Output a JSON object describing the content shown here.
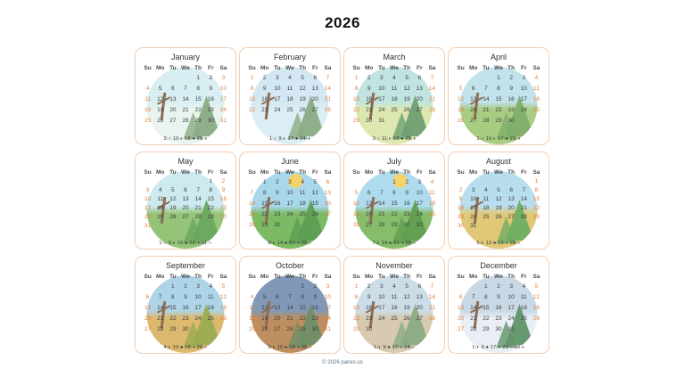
{
  "title": "2026",
  "footer": "© 2026 panes.us",
  "weekday_labels": [
    "Su",
    "Mo",
    "Tu",
    "We",
    "Th",
    "Fr",
    "Sa"
  ],
  "colors": {
    "weekend_day": "#e0813f",
    "weekday_day": "#3d3d3d",
    "weekday_header": "#4a4a4a",
    "card_border": "#f2cdb2",
    "title_text": "#111111",
    "footer_text": "#5f7585"
  },
  "months": [
    {
      "name": "January",
      "weeks": [
        [
          "",
          "",
          "",
          "",
          "1",
          "2",
          "3"
        ],
        [
          "4",
          "5",
          "6",
          "7",
          "8",
          "9",
          "10"
        ],
        [
          "11",
          "12",
          "13",
          "14",
          "15",
          "16",
          "17"
        ],
        [
          "18",
          "19",
          "20",
          "21",
          "22",
          "23",
          "24"
        ],
        [
          "25",
          "26",
          "27",
          "28",
          "29",
          "30",
          "31"
        ]
      ],
      "phases": "3:○ 10:◐ 18:● 25:◑",
      "palette": {
        "sky": "#d8eef2",
        "ground": "#e9f4f0",
        "accent": "#8aab84"
      }
    },
    {
      "name": "February",
      "weeks": [
        [
          "1",
          "2",
          "3",
          "4",
          "5",
          "6",
          "7"
        ],
        [
          "8",
          "9",
          "10",
          "11",
          "12",
          "13",
          "14"
        ],
        [
          "15",
          "16",
          "17",
          "18",
          "19",
          "20",
          "21"
        ],
        [
          "22",
          "23",
          "24",
          "25",
          "26",
          "27",
          "28"
        ]
      ],
      "phases": "1:○ 9:◐ 17:● 24:◑",
      "palette": {
        "sky": "#d3e8f2",
        "ground": "#dceef5",
        "accent": "#8aab84"
      }
    },
    {
      "name": "March",
      "weeks": [
        [
          "1",
          "2",
          "3",
          "4",
          "5",
          "6",
          "7"
        ],
        [
          "8",
          "9",
          "10",
          "11",
          "12",
          "13",
          "14"
        ],
        [
          "15",
          "16",
          "17",
          "18",
          "19",
          "20",
          "21"
        ],
        [
          "22",
          "23",
          "24",
          "25",
          "26",
          "27",
          "28"
        ],
        [
          "29",
          "30",
          "31",
          "",
          "",
          "",
          ""
        ]
      ],
      "phases": "3:○ 11:◐ 18:● 25:◑",
      "palette": {
        "sky": "#bfe4e1",
        "ground": "#dde8b0",
        "accent": "#6f9f72"
      }
    },
    {
      "name": "April",
      "weeks": [
        [
          "",
          "",
          "",
          "1",
          "2",
          "3",
          "4"
        ],
        [
          "5",
          "6",
          "7",
          "8",
          "9",
          "10",
          "11"
        ],
        [
          "12",
          "13",
          "14",
          "15",
          "16",
          "17",
          "18"
        ],
        [
          "19",
          "20",
          "21",
          "22",
          "23",
          "24",
          "25"
        ],
        [
          "26",
          "27",
          "28",
          "29",
          "30",
          "",
          ""
        ]
      ],
      "phases": "1:○ 10:◐ 17:● 23:◑",
      "palette": {
        "sky": "#c2e2ec",
        "ground": "#a8cc82",
        "accent": "#7fae6a"
      }
    },
    {
      "name": "May",
      "weeks": [
        [
          "",
          "",
          "",
          "",
          "",
          "1",
          "2"
        ],
        [
          "3",
          "4",
          "5",
          "6",
          "7",
          "8",
          "9"
        ],
        [
          "10",
          "11",
          "12",
          "13",
          "14",
          "15",
          "16"
        ],
        [
          "17",
          "18",
          "19",
          "20",
          "21",
          "22",
          "23"
        ],
        [
          "24",
          "25",
          "26",
          "27",
          "28",
          "29",
          "30"
        ],
        [
          "31",
          "",
          "",
          "",
          "",
          "",
          ""
        ]
      ],
      "phases": "1:○ 9:◐ 16:● 23:◑ 31:○",
      "palette": {
        "sky": "#cdeaf0",
        "ground": "#95c478",
        "accent": "#6aa85e"
      }
    },
    {
      "name": "June",
      "weeks": [
        [
          "",
          "1",
          "2",
          "3",
          "4",
          "5",
          "6"
        ],
        [
          "7",
          "8",
          "9",
          "10",
          "11",
          "12",
          "13"
        ],
        [
          "14",
          "15",
          "16",
          "17",
          "18",
          "19",
          "20"
        ],
        [
          "21",
          "22",
          "23",
          "24",
          "25",
          "26",
          "27"
        ],
        [
          "28",
          "29",
          "30",
          "",
          "",
          "",
          ""
        ]
      ],
      "phases": "8:◐ 14:● 21:◑ 29:○",
      "palette": {
        "sky": "#a9d8ec",
        "ground": "#7cba64",
        "accent": "#5d9e52",
        "sun": "#f5d36a"
      }
    },
    {
      "name": "July",
      "weeks": [
        [
          "",
          "",
          "",
          "1",
          "2",
          "3",
          "4"
        ],
        [
          "5",
          "6",
          "7",
          "8",
          "9",
          "10",
          "11"
        ],
        [
          "12",
          "13",
          "14",
          "15",
          "16",
          "17",
          "18"
        ],
        [
          "19",
          "20",
          "21",
          "22",
          "23",
          "24",
          "25"
        ],
        [
          "26",
          "27",
          "28",
          "29",
          "30",
          "31",
          ""
        ]
      ],
      "phases": "7:◐ 14:● 21:◑ 29:○",
      "palette": {
        "sky": "#aedcee",
        "ground": "#85bd6a",
        "accent": "#619e50",
        "sun": "#f5d36a"
      }
    },
    {
      "name": "August",
      "weeks": [
        [
          "",
          "",
          "",
          "",
          "",
          "",
          "1"
        ],
        [
          "2",
          "3",
          "4",
          "5",
          "6",
          "7",
          "8"
        ],
        [
          "9",
          "10",
          "11",
          "12",
          "13",
          "14",
          "15"
        ],
        [
          "16",
          "17",
          "18",
          "19",
          "20",
          "21",
          "22"
        ],
        [
          "23",
          "24",
          "25",
          "26",
          "27",
          "28",
          "29"
        ],
        [
          "30",
          "31",
          "",
          "",
          "",
          "",
          ""
        ]
      ],
      "phases": "5:◐ 12:● 19:◑ 28:○",
      "palette": {
        "sky": "#b8ddee",
        "ground": "#e0c878",
        "accent": "#6fae60"
      }
    },
    {
      "name": "September",
      "weeks": [
        [
          "",
          "",
          "1",
          "2",
          "3",
          "4",
          "5"
        ],
        [
          "6",
          "7",
          "8",
          "9",
          "10",
          "11",
          "12"
        ],
        [
          "13",
          "14",
          "15",
          "16",
          "17",
          "18",
          "19"
        ],
        [
          "20",
          "21",
          "22",
          "23",
          "24",
          "25",
          "26"
        ],
        [
          "27",
          "28",
          "29",
          "30",
          "",
          "",
          ""
        ]
      ],
      "phases": "4:◐ 10:● 18:◑ 26:○",
      "palette": {
        "sky": "#aed4e8",
        "ground": "#dcb96e",
        "accent": "#9aab52"
      }
    },
    {
      "name": "October",
      "weeks": [
        [
          "",
          "",
          "",
          "",
          "1",
          "2",
          "3"
        ],
        [
          "4",
          "5",
          "6",
          "7",
          "8",
          "9",
          "10"
        ],
        [
          "11",
          "12",
          "13",
          "14",
          "15",
          "16",
          "17"
        ],
        [
          "18",
          "19",
          "20",
          "21",
          "22",
          "23",
          "24"
        ],
        [
          "25",
          "26",
          "27",
          "28",
          "29",
          "30",
          "31"
        ]
      ],
      "phases": "3:◐ 10:● 18:◑ 26:○",
      "palette": {
        "sky": "#8099b8",
        "ground": "#bd8f60",
        "accent": "#6f8f66"
      }
    },
    {
      "name": "November",
      "weeks": [
        [
          "1",
          "2",
          "3",
          "4",
          "5",
          "6",
          "7"
        ],
        [
          "8",
          "9",
          "10",
          "11",
          "12",
          "13",
          "14"
        ],
        [
          "15",
          "16",
          "17",
          "18",
          "19",
          "20",
          "21"
        ],
        [
          "22",
          "23",
          "24",
          "25",
          "26",
          "27",
          "28"
        ],
        [
          "29",
          "30",
          "",
          "",
          "",
          "",
          ""
        ]
      ],
      "phases": "1:◐ 9:● 17:◑ 24:○",
      "palette": {
        "sky": "#ccdde8",
        "ground": "#d8cab0",
        "accent": "#8aab84"
      }
    },
    {
      "name": "December",
      "weeks": [
        [
          "",
          "",
          "1",
          "2",
          "3",
          "4",
          "5"
        ],
        [
          "6",
          "7",
          "8",
          "9",
          "10",
          "11",
          "12"
        ],
        [
          "13",
          "14",
          "15",
          "16",
          "17",
          "18",
          "19"
        ],
        [
          "20",
          "21",
          "22",
          "23",
          "24",
          "25",
          "26"
        ],
        [
          "27",
          "28",
          "29",
          "30",
          "31",
          "",
          ""
        ]
      ],
      "phases": "1:◐ 9:● 17:◑ 23:○ 30:◐",
      "palette": {
        "sky": "#c8d8e4",
        "ground": "#e8eef4",
        "accent": "#5f9468"
      }
    }
  ]
}
